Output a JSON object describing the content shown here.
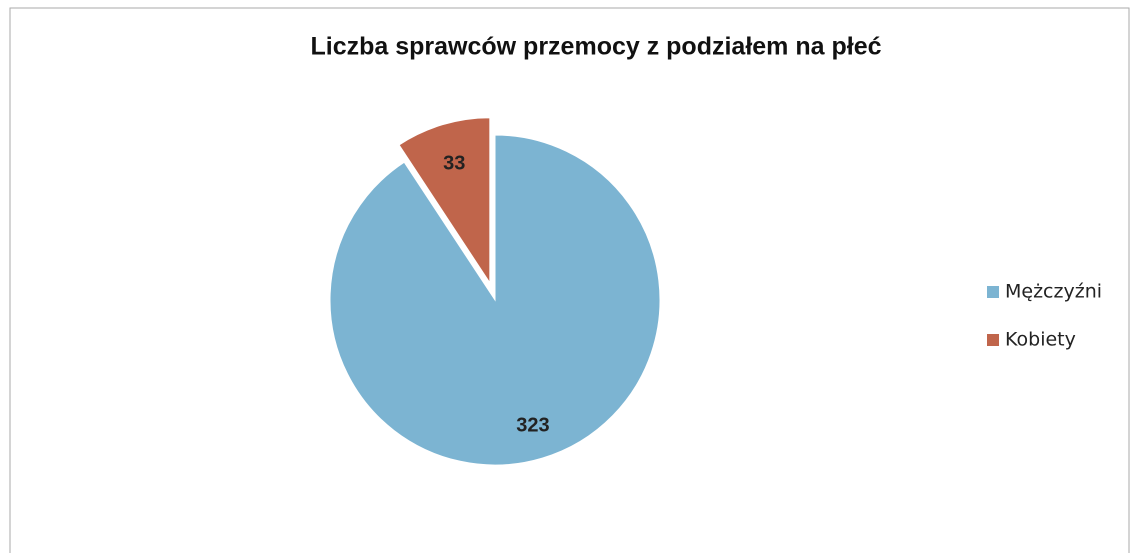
{
  "chart_data": {
    "type": "pie",
    "title": "Liczba sprawców przemocy z podziałem na płeć",
    "categories": [
      "Mężczyźni",
      "Kobiety"
    ],
    "values": [
      323,
      33
    ],
    "colors": [
      "#7cb4d2",
      "#c0654b"
    ],
    "legend": "right"
  }
}
